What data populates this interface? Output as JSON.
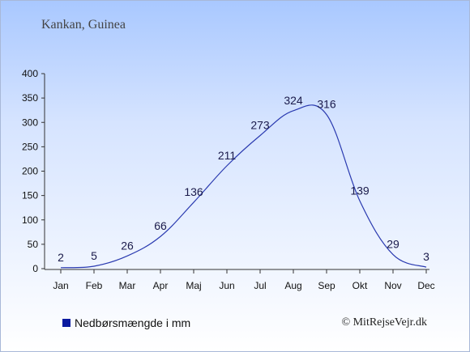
{
  "location": "Kankan, Guinea",
  "copyright": "© MitRejseVejr.dk",
  "colors": {
    "line": "#2a3ab0",
    "legend_swatch": "#0a1aa0",
    "axis": "#333333",
    "text": "#1a1a4a"
  },
  "chart_data": {
    "type": "line",
    "title": "",
    "xlabel": "",
    "ylabel": "",
    "categories": [
      "Jan",
      "Feb",
      "Mar",
      "Apr",
      "Maj",
      "Jun",
      "Jul",
      "Aug",
      "Sep",
      "Okt",
      "Nov",
      "Dec"
    ],
    "series": [
      {
        "name": "Nedbørsmængde i mm",
        "values": [
          2,
          5,
          26,
          66,
          136,
          211,
          273,
          324,
          316,
          139,
          29,
          3
        ]
      }
    ],
    "yticks": [
      0,
      50,
      100,
      150,
      200,
      250,
      300,
      350,
      400
    ],
    "ylim": [
      0,
      400
    ],
    "grid": false,
    "legend": "bottom-left"
  }
}
